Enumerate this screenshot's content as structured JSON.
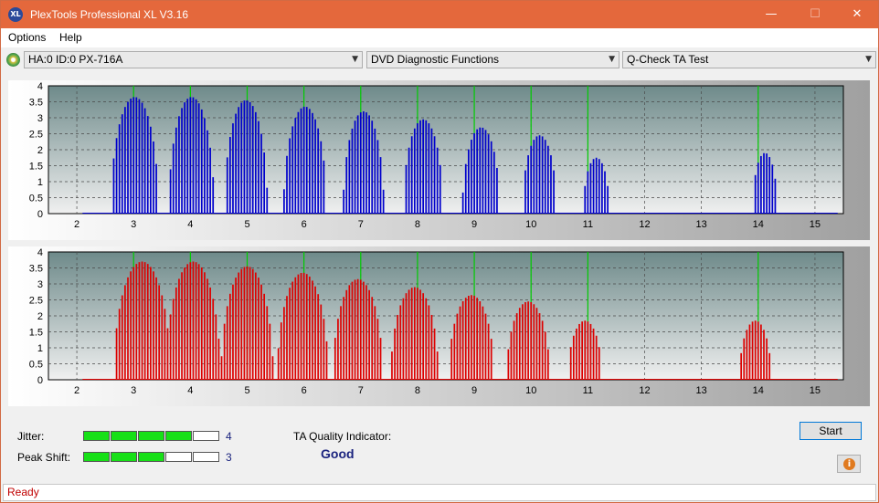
{
  "window": {
    "title": "PlexTools Professional XL V3.16",
    "app_icon_text": "XL",
    "minimize": "—",
    "maximize": "☐",
    "close": "✕"
  },
  "menu": {
    "items": [
      "Options",
      "Help"
    ]
  },
  "toolbar": {
    "drive": "HA:0 ID:0  PX-716A",
    "function": "DVD Diagnostic Functions",
    "test": "Q-Check TA Test"
  },
  "colors": {
    "titlebar": "#e4683c",
    "top_series": "#0000cc",
    "bottom_series": "#dd0000",
    "marker": "#00cc00",
    "plot_bg_top": "#6e8a8a",
    "plot_bg_bottom": "#f0f0f0"
  },
  "chart_data": [
    {
      "type": "bar",
      "name": "top",
      "xlim": [
        1.5,
        15.5
      ],
      "ylim": [
        0,
        4
      ],
      "x_ticks": [
        "2",
        "3",
        "4",
        "5",
        "6",
        "7",
        "8",
        "9",
        "10",
        "11",
        "12",
        "13",
        "14",
        "15"
      ],
      "y_ticks": [
        "0",
        "0.5",
        "1",
        "1.5",
        "2",
        "2.5",
        "3",
        "3.5",
        "4"
      ],
      "grid": true,
      "marker_lines_x": [
        3,
        4,
        5,
        6,
        7,
        8,
        9,
        10,
        11,
        14
      ],
      "peaks": [
        {
          "center": 3.02,
          "height": 3.65,
          "width": 0.42
        },
        {
          "center": 4.02,
          "height": 3.65,
          "width": 0.4
        },
        {
          "center": 4.98,
          "height": 3.55,
          "width": 0.38
        },
        {
          "center": 6.02,
          "height": 3.35,
          "width": 0.38
        },
        {
          "center": 7.05,
          "height": 3.2,
          "width": 0.36
        },
        {
          "center": 8.1,
          "height": 2.95,
          "width": 0.35
        },
        {
          "center": 9.12,
          "height": 2.7,
          "width": 0.33
        },
        {
          "center": 10.15,
          "height": 2.45,
          "width": 0.3
        },
        {
          "center": 11.15,
          "height": 1.75,
          "width": 0.23
        },
        {
          "center": 14.12,
          "height": 1.9,
          "width": 0.22
        }
      ]
    },
    {
      "type": "bar",
      "name": "bottom",
      "xlim": [
        1.5,
        15.5
      ],
      "ylim": [
        0,
        4
      ],
      "x_ticks": [
        "2",
        "3",
        "4",
        "5",
        "6",
        "7",
        "8",
        "9",
        "10",
        "11",
        "12",
        "13",
        "14",
        "15"
      ],
      "y_ticks": [
        "0",
        "0.5",
        "1",
        "1.5",
        "2",
        "2.5",
        "3",
        "3.5",
        "4"
      ],
      "grid": true,
      "marker_lines_x": [
        3,
        4,
        5,
        6,
        7,
        8,
        9,
        10,
        11,
        14
      ],
      "peaks": [
        {
          "center": 3.15,
          "height": 3.7,
          "width": 0.5
        },
        {
          "center": 4.05,
          "height": 3.7,
          "width": 0.48
        },
        {
          "center": 5.0,
          "height": 3.55,
          "width": 0.46
        },
        {
          "center": 5.98,
          "height": 3.35,
          "width": 0.45
        },
        {
          "center": 6.95,
          "height": 3.15,
          "width": 0.44
        },
        {
          "center": 7.95,
          "height": 2.9,
          "width": 0.42
        },
        {
          "center": 8.95,
          "height": 2.65,
          "width": 0.4
        },
        {
          "center": 9.95,
          "height": 2.45,
          "width": 0.38
        },
        {
          "center": 10.95,
          "height": 1.85,
          "width": 0.3
        },
        {
          "center": 13.95,
          "height": 1.85,
          "width": 0.28
        }
      ]
    }
  ],
  "results": {
    "jitter_label": "Jitter:",
    "jitter_value": "4",
    "jitter_segments_on": 4,
    "peak_shift_label": "Peak Shift:",
    "peak_shift_value": "3",
    "peak_shift_segments_on": 3,
    "segments_total": 5,
    "ta_label": "TA Quality Indicator:",
    "ta_value": "Good",
    "start_button": "Start",
    "info_icon": "i"
  },
  "status": {
    "text": "Ready"
  }
}
